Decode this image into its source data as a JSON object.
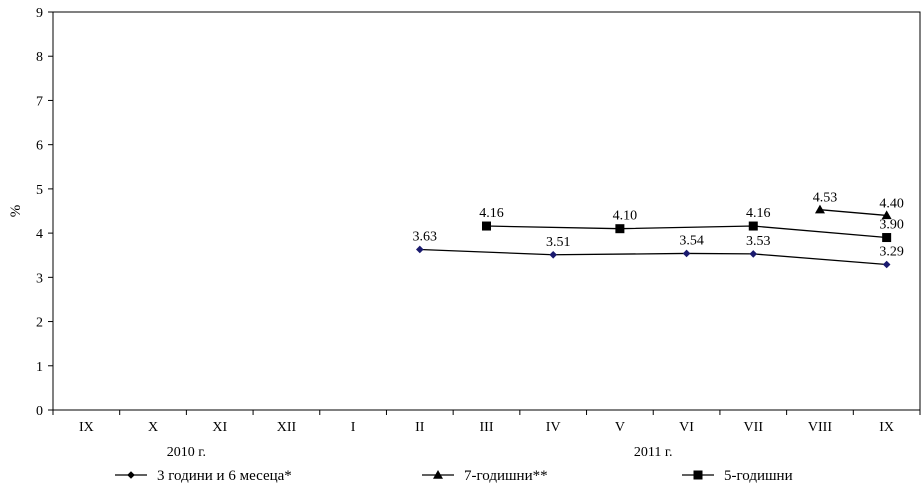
{
  "chart_data": {
    "type": "line",
    "ylabel": "%",
    "ylim": [
      0,
      9
    ],
    "yticks": [
      0,
      1,
      2,
      3,
      4,
      5,
      6,
      7,
      8,
      9
    ],
    "categories": [
      "IX",
      "X",
      "XI",
      "XII",
      "I",
      "II",
      "III",
      "IV",
      "V",
      "VI",
      "VII",
      "VIII",
      "IX"
    ],
    "year_labels": [
      {
        "label": "2010 г.",
        "category_index": 1.5
      },
      {
        "label": "2011 г.",
        "category_index": 8.5
      }
    ],
    "grid": false,
    "legend_position": "bottom",
    "series": [
      {
        "name": "3 години и 6 месеца*",
        "marker": "diamond",
        "marker_color": "#1a1a6e",
        "line_color": "#000000",
        "points": [
          {
            "i": 5,
            "value": 3.63,
            "label": "3.63"
          },
          {
            "i": 7,
            "value": 3.51,
            "label": "3.51"
          },
          {
            "i": 9,
            "value": 3.54,
            "label": "3.54"
          },
          {
            "i": 10,
            "value": 3.53,
            "label": "3.53"
          },
          {
            "i": 12,
            "value": 3.29,
            "label": "3.29"
          }
        ]
      },
      {
        "name": "7-годишни**",
        "marker": "triangle",
        "marker_color": "#000000",
        "line_color": "#000000",
        "points": [
          {
            "i": 11,
            "value": 4.53,
            "label": "4.53"
          },
          {
            "i": 12,
            "value": 4.4,
            "label": "4.40"
          }
        ]
      },
      {
        "name": "5-годишни",
        "marker": "square",
        "marker_color": "#000000",
        "line_color": "#000000",
        "points": [
          {
            "i": 6,
            "value": 4.16,
            "label": "4.16"
          },
          {
            "i": 8,
            "value": 4.1,
            "label": "4.10"
          },
          {
            "i": 10,
            "value": 4.16,
            "label": "4.16"
          },
          {
            "i": 12,
            "value": 3.9,
            "label": "3.90"
          }
        ]
      }
    ]
  }
}
